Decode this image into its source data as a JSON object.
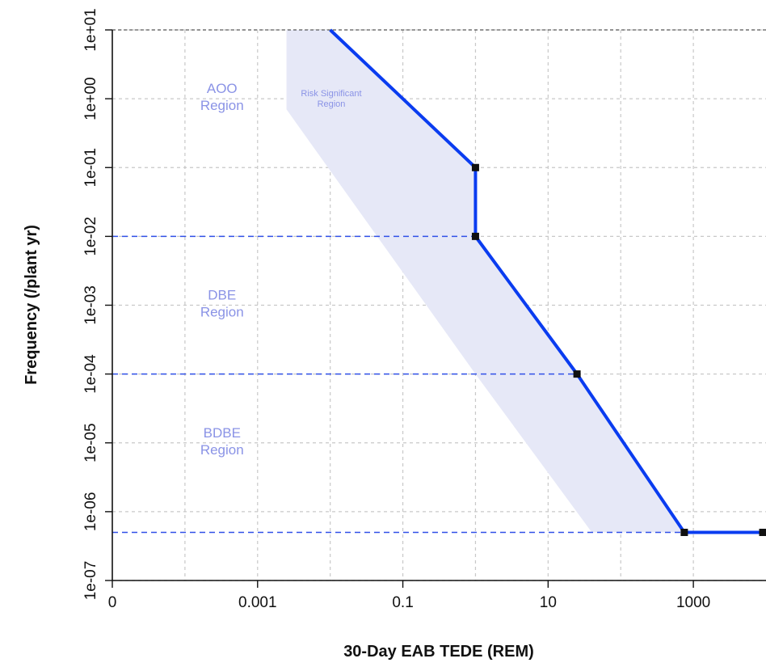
{
  "chart_data": {
    "type": "line",
    "xlabel": "30-Day EAB TEDE (REM)",
    "ylabel": "Frequency (/plant yr)",
    "x_scale": "log",
    "y_scale": "log",
    "xlim": [
      1e-05,
      10000
    ],
    "ylim": [
      1e-07,
      10
    ],
    "x_ticks": [
      {
        "value": 1e-05,
        "label": "0"
      },
      {
        "value": 0.001,
        "label": "0.001"
      },
      {
        "value": 0.1,
        "label": "0.1"
      },
      {
        "value": 10,
        "label": "10"
      },
      {
        "value": 1000,
        "label": "1000"
      }
    ],
    "x_grid": [
      0.0001,
      0.001,
      0.01,
      0.1,
      1,
      10,
      100,
      1000
    ],
    "y_ticks": [
      {
        "value": 1e-07,
        "label": "1e-07"
      },
      {
        "value": 1e-06,
        "label": "1e-06"
      },
      {
        "value": 1e-05,
        "label": "1e-05"
      },
      {
        "value": 0.0001,
        "label": "1e-04"
      },
      {
        "value": 0.001,
        "label": "1e-03"
      },
      {
        "value": 0.01,
        "label": "1e-02"
      },
      {
        "value": 0.1,
        "label": "1e-01"
      },
      {
        "value": 1,
        "label": "1e+00"
      },
      {
        "value": 10,
        "label": "1e+01"
      }
    ],
    "grid": true,
    "series": [
      {
        "color": "#0a3cf0",
        "points": [
          {
            "x": 0.01,
            "y": 10
          },
          {
            "x": 1,
            "y": 0.1
          },
          {
            "x": 1,
            "y": 0.01
          },
          {
            "x": 25,
            "y": 0.0001
          },
          {
            "x": 750,
            "y": 5e-07
          },
          {
            "x": 10000,
            "y": 5e-07
          }
        ],
        "markers": [
          {
            "x": 1,
            "y": 0.1
          },
          {
            "x": 1,
            "y": 0.01
          },
          {
            "x": 25,
            "y": 0.0001
          },
          {
            "x": 750,
            "y": 5e-07
          },
          {
            "x": 10000,
            "y": 5e-07
          }
        ]
      }
    ],
    "reference_lines": [
      {
        "y": 0.01,
        "x_end": 1,
        "color": "#3050e8"
      },
      {
        "y": 0.0001,
        "x_end": 25,
        "color": "#3050e8"
      },
      {
        "y": 5e-07,
        "x_end": 750,
        "color": "#3050e8"
      }
    ],
    "shaded_region": {
      "label": "Risk Significant Region",
      "label_lines": [
        "Risk Significant",
        "Region"
      ],
      "color": "#e6e8f7",
      "polygon": [
        {
          "x": 0.0025,
          "y": 10
        },
        {
          "x": 0.01,
          "y": 10
        },
        {
          "x": 1,
          "y": 0.1
        },
        {
          "x": 1,
          "y": 0.01
        },
        {
          "x": 25,
          "y": 0.0001
        },
        {
          "x": 750,
          "y": 5e-07
        },
        {
          "x": 40,
          "y": 5e-07
        },
        {
          "x": 1,
          "y": 0.0001
        },
        {
          "x": 0.0025,
          "y": 0.7
        }
      ]
    },
    "region_labels": [
      {
        "lines": [
          "AOO",
          "Region"
        ],
        "x": 0.0003,
        "y": 1.0,
        "color": "#8a93e6"
      },
      {
        "lines": [
          "DBE",
          "Region"
        ],
        "x": 0.0003,
        "y": 0.001,
        "color": "#8a93e6"
      },
      {
        "lines": [
          "BDBE",
          "Region"
        ],
        "x": 0.0003,
        "y": 1e-05,
        "color": "#8a93e6"
      }
    ]
  }
}
